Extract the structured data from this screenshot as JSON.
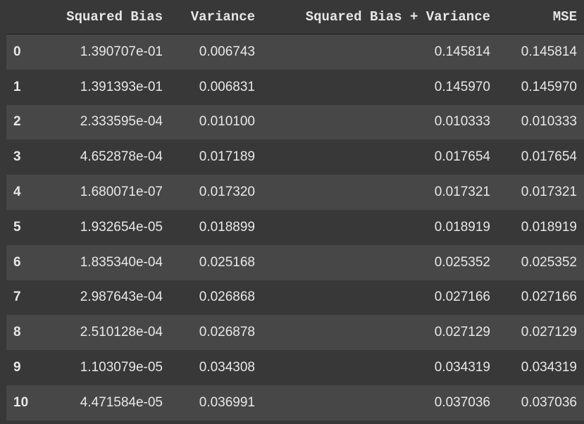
{
  "table": {
    "columns": [
      "",
      "Squared Bias",
      "Variance",
      "Squared Bias + Variance",
      "MSE"
    ],
    "rows": [
      {
        "index": "0",
        "squared_bias": "1.390707e-01",
        "variance": "0.006743",
        "sum": "0.145814",
        "mse": "0.145814"
      },
      {
        "index": "1",
        "squared_bias": "1.391393e-01",
        "variance": "0.006831",
        "sum": "0.145970",
        "mse": "0.145970"
      },
      {
        "index": "2",
        "squared_bias": "2.333595e-04",
        "variance": "0.010100",
        "sum": "0.010333",
        "mse": "0.010333"
      },
      {
        "index": "3",
        "squared_bias": "4.652878e-04",
        "variance": "0.017189",
        "sum": "0.017654",
        "mse": "0.017654"
      },
      {
        "index": "4",
        "squared_bias": "1.680071e-07",
        "variance": "0.017320",
        "sum": "0.017321",
        "mse": "0.017321"
      },
      {
        "index": "5",
        "squared_bias": "1.932654e-05",
        "variance": "0.018899",
        "sum": "0.018919",
        "mse": "0.018919"
      },
      {
        "index": "6",
        "squared_bias": "1.835340e-04",
        "variance": "0.025168",
        "sum": "0.025352",
        "mse": "0.025352"
      },
      {
        "index": "7",
        "squared_bias": "2.987643e-04",
        "variance": "0.026868",
        "sum": "0.027166",
        "mse": "0.027166"
      },
      {
        "index": "8",
        "squared_bias": "2.510128e-04",
        "variance": "0.026878",
        "sum": "0.027129",
        "mse": "0.027129"
      },
      {
        "index": "9",
        "squared_bias": "1.103079e-05",
        "variance": "0.034308",
        "sum": "0.034319",
        "mse": "0.034319"
      },
      {
        "index": "10",
        "squared_bias": "4.471584e-05",
        "variance": "0.036991",
        "sum": "0.037036",
        "mse": "0.037036"
      }
    ]
  },
  "colors": {
    "background": "#383838",
    "row_stripe": "#474747",
    "text": "#e8e8e8"
  }
}
